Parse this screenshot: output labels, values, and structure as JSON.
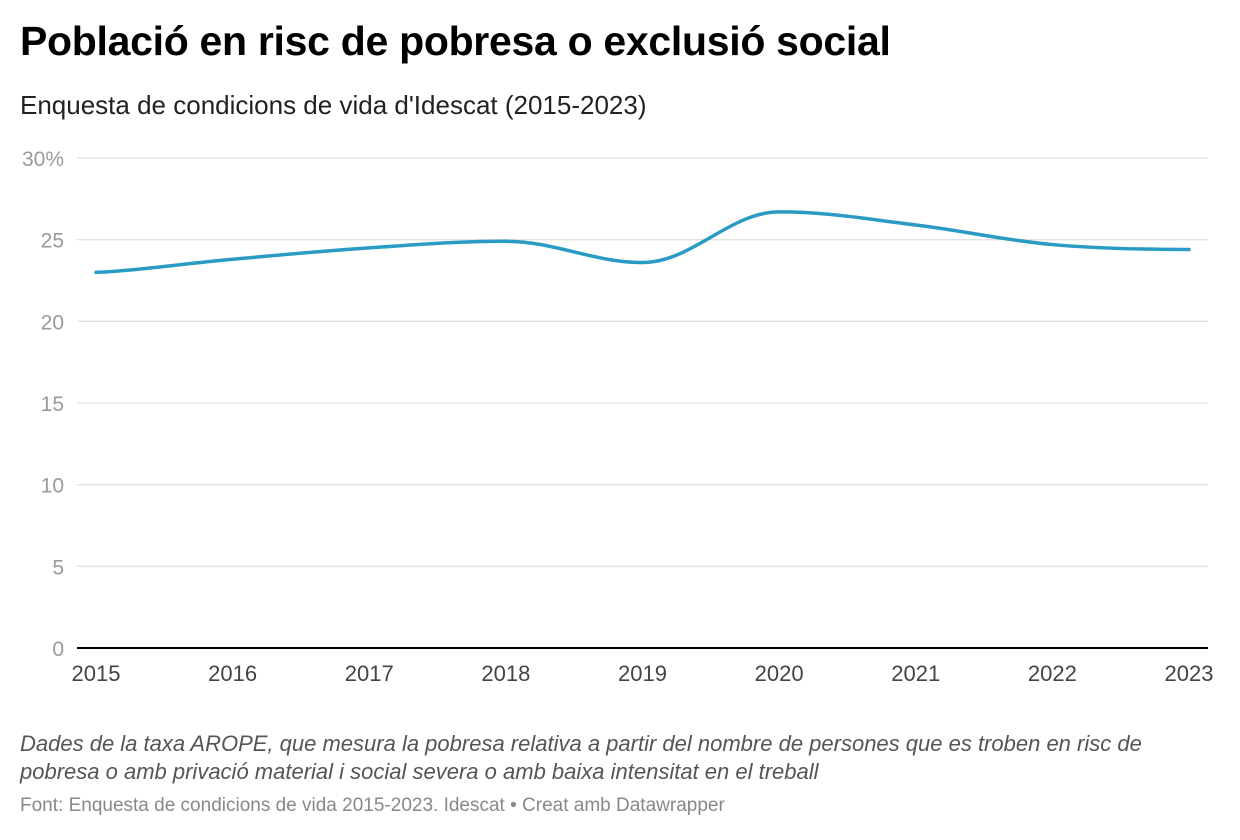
{
  "header": {
    "title": "Població en risc de pobresa o exclusió social",
    "subtitle": "Enquesta de condicions de vida d'Idescat (2015-2023)"
  },
  "footer": {
    "note": "Dades de la taxa AROPE, que mesura la pobresa relativa a partir del nombre de persones que es troben en risc de pobresa o amb privació material i social severa o amb baixa intensitat en el treball",
    "source": "Font: Enquesta de condicions de vida 2015-2023. Idescat • Creat amb Datawrapper"
  },
  "chart_data": {
    "type": "line",
    "title": "Població en risc de pobresa o exclusió social",
    "subtitle": "Enquesta de condicions de vida d'Idescat (2015-2023)",
    "x": [
      2015,
      2016,
      2017,
      2018,
      2019,
      2020,
      2021,
      2022,
      2023
    ],
    "series": [
      {
        "values": [
          23.0,
          23.8,
          24.5,
          24.9,
          23.6,
          26.7,
          25.9,
          24.7,
          24.4
        ],
        "color": "#2a9bc4"
      }
    ],
    "ylim": [
      0,
      30
    ],
    "yticks": [
      0,
      5,
      10,
      15,
      20,
      25,
      30
    ],
    "ytick_labels": [
      "0",
      "5",
      "10",
      "15",
      "20",
      "25",
      "30%"
    ],
    "xtick_labels": [
      "2015",
      "2016",
      "2017",
      "2018",
      "2019",
      "2020",
      "2021",
      "2022",
      "2023"
    ],
    "grid": true,
    "gridline_color": "#e2e2e2",
    "baseline_color": "#000000"
  }
}
